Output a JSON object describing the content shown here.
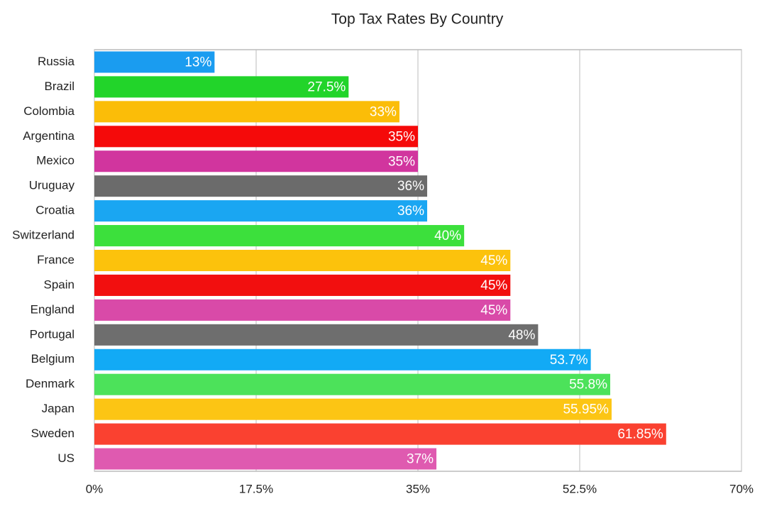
{
  "chart_data": {
    "type": "hbar",
    "title": "Top Tax Rates By Country",
    "categories": [
      "Russia",
      "Brazil",
      "Colombia",
      "Argentina",
      "Mexico",
      "Uruguay",
      "Croatia",
      "Switzerland",
      "France",
      "Spain",
      "England",
      "Portugal",
      "Belgium",
      "Denmark",
      "Japan",
      "Sweden",
      "US"
    ],
    "values": [
      13,
      27.5,
      33,
      35,
      35,
      36,
      36,
      40,
      45,
      45,
      45,
      48,
      53.7,
      55.8,
      55.95,
      61.85,
      37
    ],
    "value_labels": [
      "13%",
      "27.5%",
      "33%",
      "35%",
      "35%",
      "36%",
      "36%",
      "40%",
      "45%",
      "45%",
      "45%",
      "48%",
      "53.7%",
      "55.8%",
      "55.95%",
      "61.85%",
      "37%"
    ],
    "colors": [
      "#1a9cf0",
      "#22d42a",
      "#fbbd08",
      "#f50a0a",
      "#d1359e",
      "#6b6b6b",
      "#1aa6f2",
      "#3ce03c",
      "#fcc20c",
      "#f20f0f",
      "#d94aa8",
      "#6e6e6e",
      "#12aaf5",
      "#4ce25a",
      "#fcc514",
      "#fa4130",
      "#df5ab0"
    ],
    "xlim": [
      0,
      70
    ],
    "xticks": [
      {
        "value": 0,
        "label": "0%"
      },
      {
        "value": 17.5,
        "label": "17.5%"
      },
      {
        "value": 35,
        "label": "35%"
      },
      {
        "value": 52.5,
        "label": "52.5%"
      },
      {
        "value": 70,
        "label": "70%"
      }
    ],
    "grid": true
  }
}
